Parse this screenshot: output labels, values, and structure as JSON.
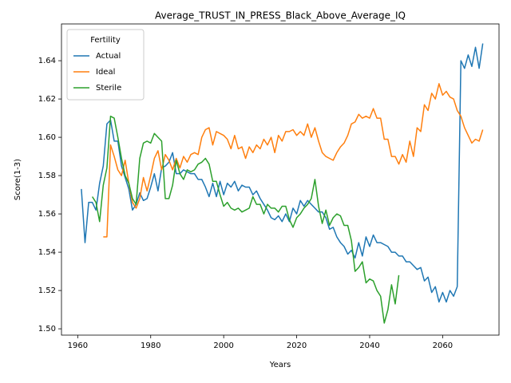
{
  "chart_data": {
    "type": "line",
    "title": "Average_TRUST_IN_PRESS_Black_Above_Average_IQ",
    "x_label": "Years",
    "y_label": "Score(1-3)",
    "legend_title": "Fertility",
    "legend": "upper left",
    "xlim": [
      1955.55,
      2075.45
    ],
    "ylim": [
      1.4967,
      1.6592
    ],
    "xticks": [
      1960,
      1980,
      2000,
      2020,
      2040,
      2060
    ],
    "yticks": [
      {
        "value": 1.5,
        "label": "1.50"
      },
      1.52,
      1.54,
      1.56,
      1.58,
      {
        "value": 1.6,
        "label": "1.60"
      },
      1.62,
      1.64
    ],
    "x": [
      1961,
      1962,
      1963,
      1964,
      1965,
      1966,
      1967,
      1968,
      1969,
      1970,
      1971,
      1972,
      1973,
      1974,
      1975,
      1976,
      1977,
      1978,
      1979,
      1980,
      1981,
      1982,
      1983,
      1984,
      1985,
      1986,
      1987,
      1988,
      1989,
      1990,
      1991,
      1992,
      1993,
      1994,
      1995,
      1996,
      1997,
      1998,
      1999,
      2000,
      2001,
      2002,
      2003,
      2004,
      2005,
      2006,
      2007,
      2008,
      2009,
      2010,
      2011,
      2012,
      2013,
      2014,
      2015,
      2016,
      2017,
      2018,
      2019,
      2020,
      2021,
      2022,
      2023,
      2024,
      2025,
      2026,
      2027,
      2028,
      2029,
      2030,
      2031,
      2032,
      2033,
      2034,
      2035,
      2036,
      2037,
      2038,
      2039,
      2040,
      2041,
      2042,
      2043,
      2044,
      2045,
      2046,
      2047,
      2048,
      2049,
      2050,
      2051,
      2052,
      2053,
      2054,
      2055,
      2056,
      2057,
      2058,
      2059,
      2060,
      2061,
      2062,
      2063,
      2064,
      2065,
      2066,
      2067,
      2068,
      2069,
      2070,
      2071
    ],
    "series": [
      {
        "name": "Actual",
        "color": "#1f77b4",
        "values": [
          1.573,
          1.545,
          1.566,
          1.566,
          1.562,
          1.576,
          1.585,
          1.607,
          1.609,
          1.598,
          1.598,
          1.585,
          1.579,
          1.573,
          1.562,
          1.565,
          1.571,
          1.567,
          1.568,
          1.574,
          1.581,
          1.572,
          1.584,
          1.585,
          1.587,
          1.592,
          1.581,
          1.581,
          1.583,
          1.582,
          1.581,
          1.581,
          1.578,
          1.578,
          1.574,
          1.569,
          1.576,
          1.569,
          1.577,
          1.57,
          1.576,
          1.574,
          1.577,
          1.572,
          1.575,
          1.574,
          1.574,
          1.57,
          1.572,
          1.568,
          1.565,
          1.562,
          1.558,
          1.557,
          1.559,
          1.556,
          1.56,
          1.556,
          1.563,
          1.56,
          1.567,
          1.564,
          1.567,
          1.565,
          1.563,
          1.561,
          1.561,
          1.558,
          1.552,
          1.553,
          1.548,
          1.545,
          1.543,
          1.539,
          1.541,
          1.537,
          1.545,
          1.538,
          1.548,
          1.543,
          1.549,
          1.545,
          1.545,
          1.544,
          1.543,
          1.54,
          1.54,
          1.538,
          1.538,
          1.535,
          1.535,
          1.533,
          1.531,
          1.532,
          1.525,
          1.527,
          1.519,
          1.522,
          1.514,
          1.519,
          1.514,
          1.52,
          1.517,
          1.522,
          1.64,
          1.636,
          1.643,
          1.637,
          1.647,
          1.636,
          1.649
        ]
      },
      {
        "name": "Ideal",
        "color": "#ff7f0e",
        "values": [
          null,
          null,
          null,
          null,
          null,
          null,
          1.548,
          1.548,
          1.596,
          1.59,
          1.583,
          1.58,
          1.588,
          1.576,
          1.566,
          1.563,
          1.568,
          1.579,
          1.572,
          1.58,
          1.589,
          1.593,
          1.583,
          1.591,
          1.588,
          1.583,
          1.589,
          1.584,
          1.59,
          1.587,
          1.591,
          1.592,
          1.591,
          1.6,
          1.604,
          1.605,
          1.596,
          1.603,
          1.602,
          1.601,
          1.599,
          1.594,
          1.601,
          1.594,
          1.595,
          1.589,
          1.595,
          1.592,
          1.596,
          1.594,
          1.599,
          1.596,
          1.6,
          1.592,
          1.601,
          1.598,
          1.603,
          1.603,
          1.604,
          1.601,
          1.603,
          1.601,
          1.607,
          1.6,
          1.605,
          1.598,
          1.592,
          1.59,
          1.589,
          1.588,
          1.592,
          1.595,
          1.597,
          1.601,
          1.607,
          1.608,
          1.612,
          1.61,
          1.611,
          1.61,
          1.615,
          1.61,
          1.61,
          1.599,
          1.599,
          1.59,
          1.59,
          1.586,
          1.591,
          1.587,
          1.598,
          1.59,
          1.605,
          1.603,
          1.617,
          1.614,
          1.623,
          1.62,
          1.628,
          1.622,
          1.624,
          1.621,
          1.62,
          1.614,
          1.611,
          1.605,
          1.601,
          1.597,
          1.599,
          1.598,
          1.604
        ]
      },
      {
        "name": "Sterile",
        "color": "#2ca02c",
        "values": [
          null,
          null,
          null,
          1.569,
          1.566,
          1.556,
          1.575,
          1.584,
          1.611,
          1.61,
          1.6,
          1.589,
          1.58,
          1.576,
          1.568,
          1.565,
          1.589,
          1.597,
          1.598,
          1.597,
          1.602,
          1.6,
          1.598,
          1.568,
          1.568,
          1.575,
          1.588,
          1.581,
          1.578,
          1.583,
          1.582,
          1.583,
          1.586,
          1.587,
          1.589,
          1.586,
          1.577,
          1.577,
          1.57,
          1.564,
          1.566,
          1.563,
          1.562,
          1.563,
          1.561,
          1.562,
          1.563,
          1.569,
          1.565,
          1.565,
          1.56,
          1.565,
          1.563,
          1.563,
          1.561,
          1.564,
          1.564,
          1.557,
          1.553,
          1.558,
          1.56,
          1.563,
          1.565,
          1.568,
          1.578,
          1.564,
          1.555,
          1.562,
          1.554,
          1.558,
          1.56,
          1.559,
          1.554,
          1.554,
          1.546,
          1.53,
          1.532,
          1.535,
          1.524,
          1.526,
          1.525,
          1.52,
          1.517,
          1.503,
          1.51,
          1.523,
          1.513,
          1.528,
          null,
          null,
          null,
          null,
          null,
          null,
          null,
          null,
          null,
          null,
          null,
          null,
          null,
          null,
          null,
          null,
          null,
          null,
          null,
          null,
          null,
          null,
          null
        ]
      }
    ]
  }
}
